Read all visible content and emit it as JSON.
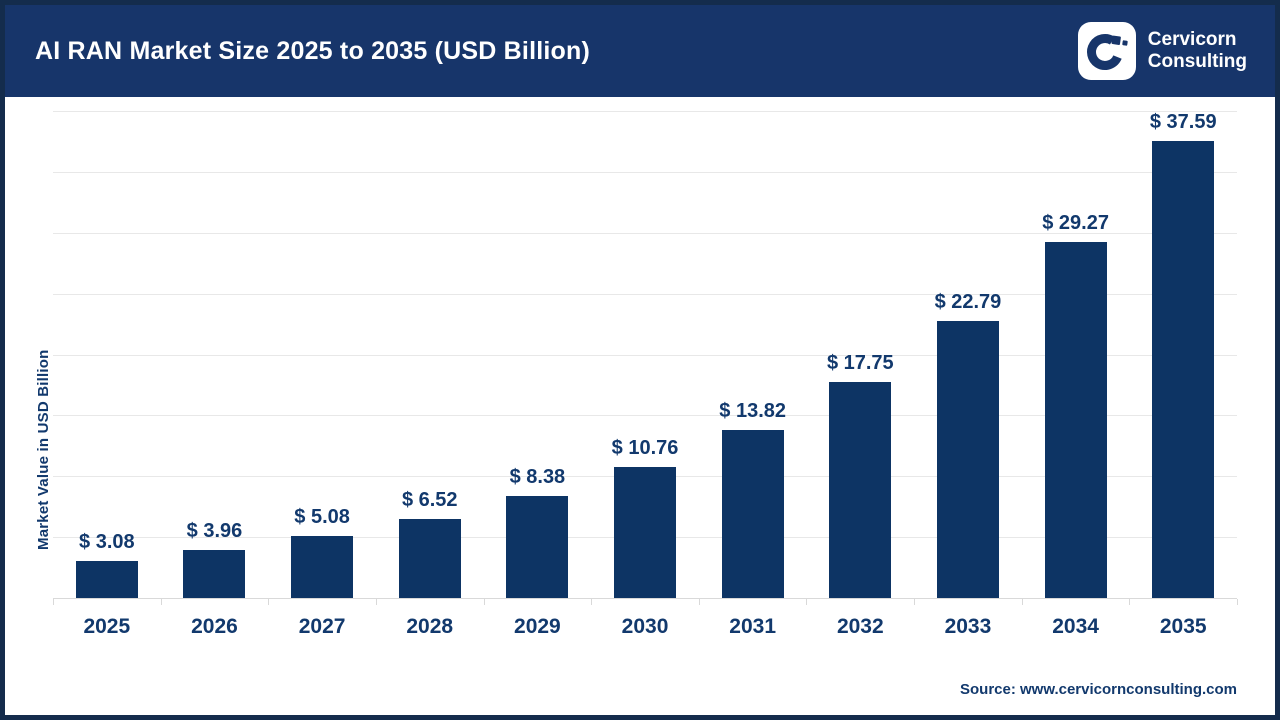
{
  "header": {
    "title": "AI RAN Market Size 2025 to 2035 (USD Billion)",
    "logo": {
      "line1": "Cervicorn",
      "line2": "Consulting"
    }
  },
  "chart_data": {
    "type": "bar",
    "title": "AI RAN Market Size 2025 to 2035 (USD Billion)",
    "categories": [
      "2025",
      "2026",
      "2027",
      "2028",
      "2029",
      "2030",
      "2031",
      "2032",
      "2033",
      "2034",
      "2035"
    ],
    "values": [
      3.08,
      3.96,
      5.08,
      6.52,
      8.38,
      10.76,
      13.82,
      17.75,
      22.79,
      29.27,
      37.59
    ],
    "value_label_prefix": "$ ",
    "xlabel": "",
    "ylabel": "Market Value in USD Billion",
    "ylim": [
      0,
      40
    ],
    "gridline_step": 5,
    "grid": true,
    "legend": false,
    "bar_color": "#0D3464"
  },
  "footer": {
    "source": "Source: www.cervicornconsulting.com"
  },
  "colors": {
    "header_bg": "#17356A",
    "frame_border": "#142C4C",
    "bar": "#0D3464",
    "label_text": "#12396D",
    "gridline": "#E8E8E8",
    "axis_line": "#D9D9D9",
    "chart_bg": "#FFFFFF",
    "logo_box_bg": "#FFFFFF",
    "title_text": "#FFFFFF"
  }
}
